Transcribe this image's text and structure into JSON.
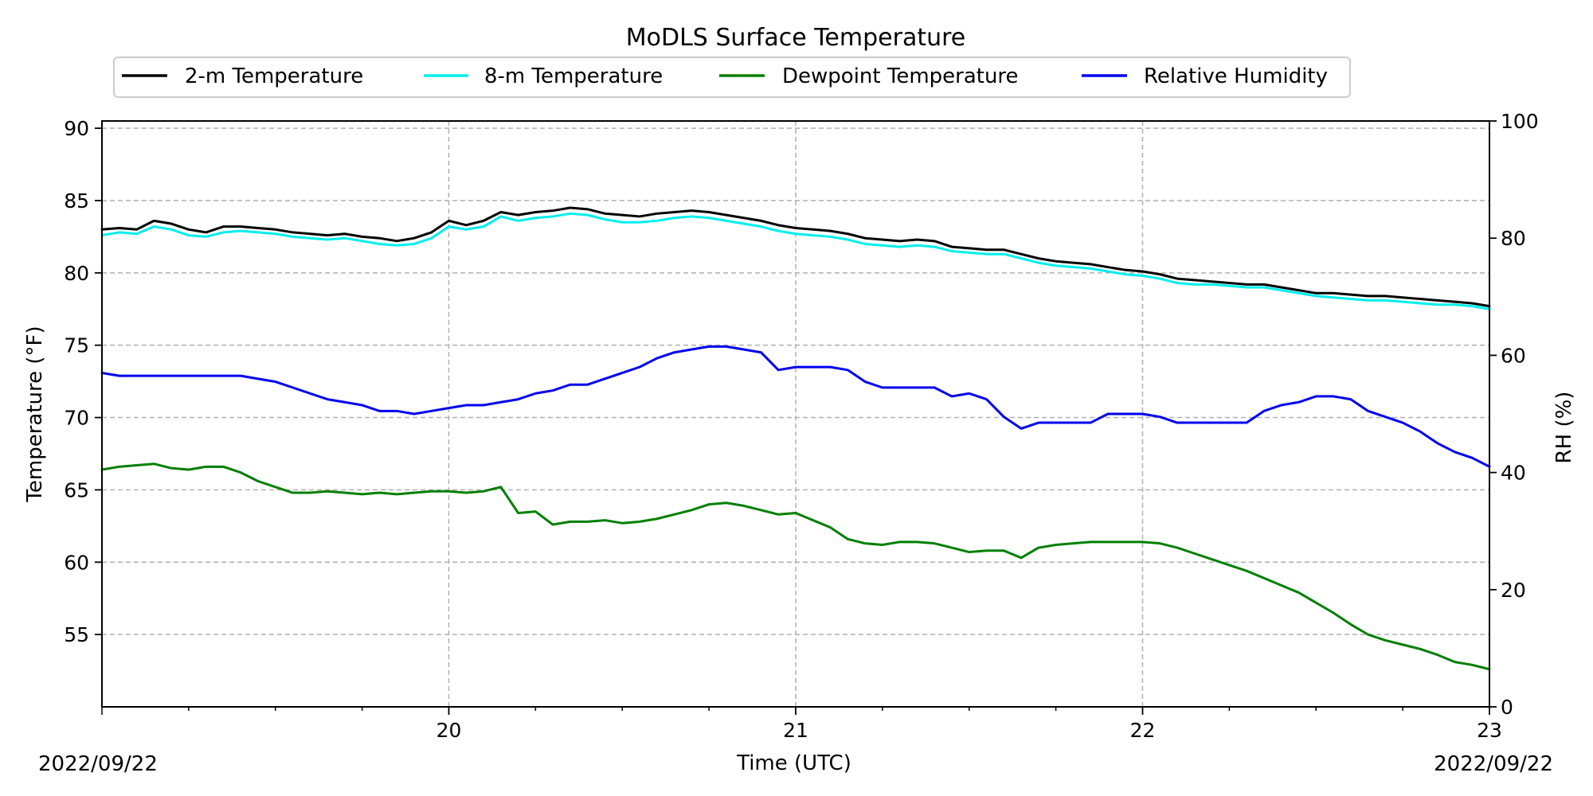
{
  "chart_data": {
    "type": "line",
    "title": "MoDLS Surface Temperature",
    "xlabel": "Time (UTC)",
    "ylabel": "Temperature ($^\\circ$F)",
    "ylabel_display": "Temperature (°F)",
    "y2label": "RH (%)",
    "date_left": "2022/09/22",
    "date_right": "2022/09/22",
    "xlim": [
      19.0,
      23.0
    ],
    "ylim": [
      50.0,
      90.5
    ],
    "y2lim": [
      0,
      100
    ],
    "x_ticks": [
      {
        "value": 20,
        "label": "20"
      },
      {
        "value": 21,
        "label": "21"
      },
      {
        "value": 22,
        "label": "22"
      },
      {
        "value": 23,
        "label": "23"
      }
    ],
    "y_ticks": [
      55,
      60,
      65,
      70,
      75,
      80,
      85,
      90
    ],
    "y2_ticks": [
      0,
      20,
      40,
      60,
      80,
      100
    ],
    "grid": true,
    "legend_position": "top",
    "series": [
      {
        "name": "2-m Temperature",
        "axis": "left",
        "color": "#000000",
        "x": [
          19.0,
          19.05,
          19.1,
          19.15,
          19.2,
          19.25,
          19.3,
          19.35,
          19.4,
          19.45,
          19.5,
          19.55,
          19.6,
          19.65,
          19.7,
          19.75,
          19.8,
          19.85,
          19.9,
          19.95,
          20.0,
          20.05,
          20.1,
          20.15,
          20.2,
          20.25,
          20.3,
          20.35,
          20.4,
          20.45,
          20.5,
          20.55,
          20.6,
          20.65,
          20.7,
          20.75,
          20.8,
          20.85,
          20.9,
          20.95,
          21.0,
          21.05,
          21.1,
          21.15,
          21.2,
          21.25,
          21.3,
          21.35,
          21.4,
          21.45,
          21.5,
          21.55,
          21.6,
          21.65,
          21.7,
          21.75,
          21.8,
          21.85,
          21.9,
          21.95,
          22.0,
          22.05,
          22.1,
          22.15,
          22.2,
          22.25,
          22.3,
          22.35,
          22.4,
          22.45,
          22.5,
          22.55,
          22.6,
          22.65,
          22.7,
          22.75,
          22.8,
          22.85,
          22.9,
          22.95,
          23.0
        ],
        "y": [
          83.0,
          83.1,
          83.0,
          83.6,
          83.4,
          83.0,
          82.8,
          83.2,
          83.2,
          83.1,
          83.0,
          82.8,
          82.7,
          82.6,
          82.7,
          82.5,
          82.4,
          82.2,
          82.4,
          82.8,
          83.6,
          83.3,
          83.6,
          84.2,
          84.0,
          84.2,
          84.3,
          84.5,
          84.4,
          84.1,
          84.0,
          83.9,
          84.1,
          84.2,
          84.3,
          84.2,
          84.0,
          83.8,
          83.6,
          83.3,
          83.1,
          83.0,
          82.9,
          82.7,
          82.4,
          82.3,
          82.2,
          82.3,
          82.2,
          81.8,
          81.7,
          81.6,
          81.6,
          81.3,
          81.0,
          80.8,
          80.7,
          80.6,
          80.4,
          80.2,
          80.1,
          79.9,
          79.6,
          79.5,
          79.4,
          79.3,
          79.2,
          79.2,
          79.0,
          78.8,
          78.6,
          78.6,
          78.5,
          78.4,
          78.4,
          78.3,
          78.2,
          78.1,
          78.0,
          77.9,
          77.7
        ]
      },
      {
        "name": "8-m Temperature",
        "axis": "left",
        "color": "#00eeee",
        "x": [
          19.0,
          19.05,
          19.1,
          19.15,
          19.2,
          19.25,
          19.3,
          19.35,
          19.4,
          19.45,
          19.5,
          19.55,
          19.6,
          19.65,
          19.7,
          19.75,
          19.8,
          19.85,
          19.9,
          19.95,
          20.0,
          20.05,
          20.1,
          20.15,
          20.2,
          20.25,
          20.3,
          20.35,
          20.4,
          20.45,
          20.5,
          20.55,
          20.6,
          20.65,
          20.7,
          20.75,
          20.8,
          20.85,
          20.9,
          20.95,
          21.0,
          21.05,
          21.1,
          21.15,
          21.2,
          21.25,
          21.3,
          21.35,
          21.4,
          21.45,
          21.5,
          21.55,
          21.6,
          21.65,
          21.7,
          21.75,
          21.8,
          21.85,
          21.9,
          21.95,
          22.0,
          22.05,
          22.1,
          22.15,
          22.2,
          22.25,
          22.3,
          22.35,
          22.4,
          22.45,
          22.5,
          22.55,
          22.6,
          22.65,
          22.7,
          22.75,
          22.8,
          22.85,
          22.9,
          22.95,
          23.0
        ],
        "y": [
          82.6,
          82.8,
          82.7,
          83.2,
          83.0,
          82.6,
          82.5,
          82.8,
          82.9,
          82.8,
          82.7,
          82.5,
          82.4,
          82.3,
          82.4,
          82.2,
          82.0,
          81.9,
          82.0,
          82.4,
          83.2,
          83.0,
          83.2,
          83.9,
          83.6,
          83.8,
          83.9,
          84.1,
          84.0,
          83.7,
          83.5,
          83.5,
          83.6,
          83.8,
          83.9,
          83.8,
          83.6,
          83.4,
          83.2,
          82.9,
          82.7,
          82.6,
          82.5,
          82.3,
          82.0,
          81.9,
          81.8,
          81.9,
          81.8,
          81.5,
          81.4,
          81.3,
          81.3,
          81.0,
          80.7,
          80.5,
          80.4,
          80.3,
          80.1,
          79.9,
          79.8,
          79.6,
          79.3,
          79.2,
          79.2,
          79.1,
          79.0,
          79.0,
          78.8,
          78.6,
          78.4,
          78.3,
          78.2,
          78.1,
          78.1,
          78.0,
          77.9,
          77.8,
          77.8,
          77.7,
          77.5
        ]
      },
      {
        "name": "Dewpoint Temperature",
        "axis": "left",
        "color": "#007f00",
        "x": [
          19.0,
          19.05,
          19.1,
          19.15,
          19.2,
          19.25,
          19.3,
          19.35,
          19.4,
          19.45,
          19.5,
          19.55,
          19.6,
          19.65,
          19.7,
          19.75,
          19.8,
          19.85,
          19.9,
          19.95,
          20.0,
          20.05,
          20.1,
          20.15,
          20.2,
          20.25,
          20.3,
          20.35,
          20.4,
          20.45,
          20.5,
          20.55,
          20.6,
          20.65,
          20.7,
          20.75,
          20.8,
          20.85,
          20.9,
          20.95,
          21.0,
          21.05,
          21.1,
          21.15,
          21.2,
          21.25,
          21.3,
          21.35,
          21.4,
          21.45,
          21.5,
          21.55,
          21.6,
          21.65,
          21.7,
          21.75,
          21.8,
          21.85,
          21.9,
          21.95,
          22.0,
          22.05,
          22.1,
          22.15,
          22.2,
          22.25,
          22.3,
          22.35,
          22.4,
          22.45,
          22.5,
          22.55,
          22.6,
          22.65,
          22.7,
          22.75,
          22.8,
          22.85,
          22.9,
          22.95,
          23.0
        ],
        "y": [
          66.4,
          66.6,
          66.7,
          66.8,
          66.5,
          66.4,
          66.6,
          66.6,
          66.2,
          65.6,
          65.2,
          64.8,
          64.8,
          64.9,
          64.8,
          64.7,
          64.8,
          64.7,
          64.8,
          64.9,
          64.9,
          64.8,
          64.9,
          65.2,
          63.4,
          63.5,
          62.6,
          62.8,
          62.8,
          62.9,
          62.7,
          62.8,
          63.0,
          63.3,
          63.6,
          64.0,
          64.1,
          63.9,
          63.6,
          63.3,
          63.4,
          62.9,
          62.4,
          61.6,
          61.3,
          61.2,
          61.4,
          61.4,
          61.3,
          61.0,
          60.7,
          60.8,
          60.8,
          60.3,
          61.0,
          61.2,
          61.3,
          61.4,
          61.4,
          61.4,
          61.4,
          61.3,
          61.0,
          60.6,
          60.2,
          59.8,
          59.4,
          58.9,
          58.4,
          57.9,
          57.2,
          56.5,
          55.7,
          55.0,
          54.6,
          54.3,
          54.0,
          53.6,
          53.1,
          52.9,
          52.6
        ]
      },
      {
        "name": "Relative Humidity",
        "axis": "right",
        "color": "#0000ee",
        "x": [
          19.0,
          19.05,
          19.1,
          19.15,
          19.2,
          19.25,
          19.3,
          19.35,
          19.4,
          19.45,
          19.5,
          19.55,
          19.6,
          19.65,
          19.7,
          19.75,
          19.8,
          19.85,
          19.9,
          19.95,
          20.0,
          20.05,
          20.1,
          20.15,
          20.2,
          20.25,
          20.3,
          20.35,
          20.4,
          20.45,
          20.5,
          20.55,
          20.6,
          20.65,
          20.7,
          20.75,
          20.8,
          20.85,
          20.9,
          20.95,
          21.0,
          21.05,
          21.1,
          21.15,
          21.2,
          21.25,
          21.3,
          21.35,
          21.4,
          21.45,
          21.5,
          21.55,
          21.6,
          21.65,
          21.7,
          21.75,
          21.8,
          21.85,
          21.9,
          21.95,
          22.0,
          22.05,
          22.1,
          22.15,
          22.2,
          22.25,
          22.3,
          22.35,
          22.4,
          22.45,
          22.5,
          22.55,
          22.6,
          22.65,
          22.7,
          22.75,
          22.8,
          22.85,
          22.9,
          22.95,
          23.0
        ],
        "y": [
          57.0,
          56.5,
          56.5,
          56.5,
          56.5,
          56.5,
          56.5,
          56.5,
          56.5,
          56.0,
          55.5,
          54.5,
          53.5,
          52.5,
          52.0,
          51.5,
          50.5,
          50.5,
          50.0,
          50.5,
          51.0,
          51.5,
          51.5,
          52.0,
          52.5,
          53.5,
          54.0,
          55.0,
          55.0,
          56.0,
          57.0,
          58.0,
          59.5,
          60.5,
          61.0,
          61.5,
          61.5,
          61.0,
          60.5,
          57.5,
          58.0,
          58.0,
          58.0,
          57.5,
          55.5,
          54.5,
          54.5,
          54.5,
          54.5,
          53.0,
          53.5,
          52.5,
          49.5,
          47.5,
          48.5,
          48.5,
          48.5,
          48.5,
          50.0,
          50.0,
          50.0,
          49.5,
          48.5,
          48.5,
          48.5,
          48.5,
          48.5,
          50.5,
          51.5,
          52.0,
          53.0,
          53.0,
          52.5,
          50.5,
          49.5,
          48.5,
          47.0,
          45.0,
          43.5,
          42.5,
          41.0
        ]
      }
    ]
  }
}
